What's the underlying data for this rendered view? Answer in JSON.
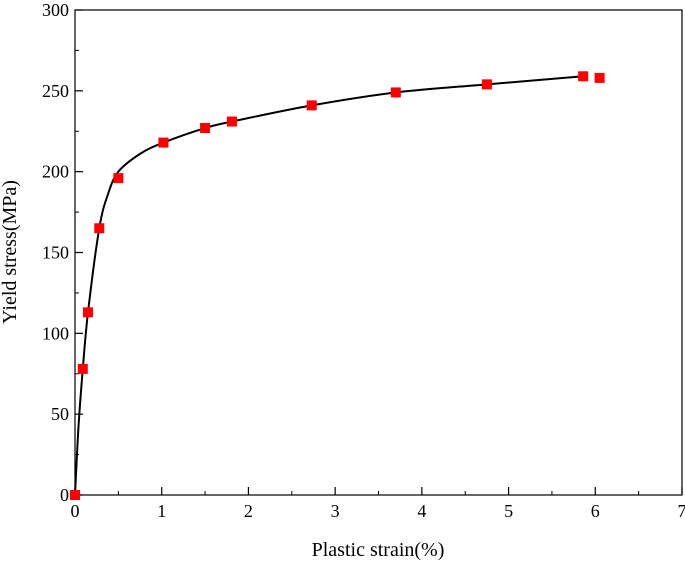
{
  "chart_data": {
    "type": "line",
    "xlabel": "Plastic strain(%)",
    "ylabel": "Yield stress(MPa)",
    "xlim": [
      0,
      7
    ],
    "ylim": [
      0,
      300
    ],
    "xticks": [
      0,
      1,
      2,
      3,
      4,
      5,
      6,
      7
    ],
    "yticks": [
      0,
      50,
      100,
      150,
      200,
      250,
      300
    ],
    "grid": false,
    "legend": "none",
    "colors": {
      "marker": "#ff0000",
      "line": "#000000"
    },
    "series": [
      {
        "kind": "scatter",
        "marker": "square",
        "x": [
          0.0,
          0.09,
          0.15,
          0.28,
          0.5,
          1.02,
          1.5,
          1.81,
          2.73,
          3.7,
          4.75,
          5.86,
          6.05
        ],
        "y": [
          0,
          78,
          113,
          165,
          196,
          218,
          227,
          231,
          241,
          249,
          254,
          259,
          258
        ]
      },
      {
        "kind": "line",
        "style": "smooth",
        "x": [
          0.0,
          0.04,
          0.09,
          0.15,
          0.28,
          0.38,
          0.5,
          0.75,
          1.02,
          1.5,
          1.81,
          2.73,
          3.7,
          4.75,
          5.86
        ],
        "y": [
          0,
          42,
          78,
          113,
          165,
          186,
          200,
          211,
          218,
          227,
          231,
          241,
          249,
          254,
          259
        ]
      }
    ]
  }
}
